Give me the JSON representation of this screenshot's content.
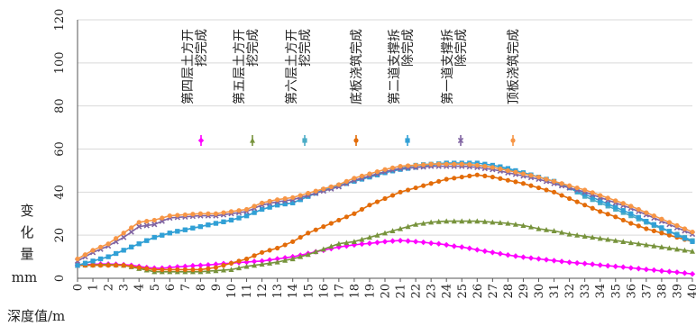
{
  "chart_data": {
    "type": "line",
    "x": [
      0,
      0.5,
      1,
      1.5,
      2,
      2.5,
      3,
      3.5,
      4,
      4.5,
      5,
      5.5,
      6,
      6.5,
      7,
      7.5,
      8,
      8.5,
      9,
      9.5,
      10,
      10.5,
      11,
      11.5,
      12,
      12.5,
      13,
      13.5,
      14,
      14.5,
      15,
      15.5,
      16,
      16.5,
      17,
      17.5,
      18,
      18.5,
      19,
      19.5,
      20,
      20.5,
      21,
      21.5,
      22,
      22.5,
      23,
      23.5,
      24,
      24.5,
      25,
      25.5,
      26,
      26.5,
      27,
      27.5,
      28,
      28.5,
      29,
      29.5,
      30,
      30.5,
      31,
      31.5,
      32,
      32.5,
      33,
      33.5,
      34,
      34.5,
      35,
      35.5,
      36,
      36.5,
      37,
      37.5,
      38,
      38.5,
      39,
      39.5,
      40
    ],
    "xticks": [
      0,
      1,
      2,
      3,
      4,
      5,
      6,
      7,
      8,
      9,
      10,
      11,
      12,
      13,
      14,
      15,
      16,
      17,
      18,
      19,
      20,
      21,
      22,
      23,
      24,
      25,
      26,
      27,
      28,
      29,
      30,
      31,
      32,
      33,
      34,
      35,
      36,
      37,
      38,
      39,
      40
    ],
    "xlim": [
      0,
      40
    ],
    "ylim": [
      0,
      120
    ],
    "yticks": [
      0,
      20,
      40,
      60,
      80,
      100,
      120
    ],
    "xlabel": "深度值/m",
    "ylabel_chars": [
      "变",
      "化",
      "量"
    ],
    "ylabel_unit": "mm",
    "legend_position": "top-center",
    "series": [
      {
        "name": "第四层土方开挖完成",
        "label_lines": [
          "第四层土方开",
          "挖完成"
        ],
        "color": "#ff00ff",
        "marker": "diamond",
        "values": [
          6,
          6.3,
          6.5,
          6.6,
          6.6,
          6.5,
          6.3,
          6,
          5.5,
          5,
          4.7,
          4.7,
          5,
          5.3,
          5.5,
          5.8,
          6,
          6.2,
          6.5,
          6.8,
          7,
          7.3,
          7.5,
          7.8,
          8,
          8.5,
          9,
          9.5,
          10,
          10.7,
          11.5,
          12.3,
          13,
          13.8,
          14.5,
          15,
          15.5,
          15.9,
          16.2,
          16.6,
          17,
          17.3,
          17.5,
          17.3,
          17,
          16.7,
          16.3,
          16,
          15.5,
          14.9,
          14.5,
          13.9,
          13.2,
          12.6,
          12,
          11.4,
          10.8,
          10.3,
          9.8,
          9.4,
          9,
          8.6,
          8.2,
          7.8,
          7.4,
          7.1,
          6.8,
          6.5,
          6.1,
          5.8,
          5.5,
          5.2,
          4.8,
          4.5,
          4.1,
          3.8,
          3.4,
          3.1,
          2.8,
          2.4,
          2
        ]
      },
      {
        "name": "第五层土方开挖完成",
        "label_lines": [
          "第五层土方开",
          "挖完成"
        ],
        "color": "#77933c",
        "marker": "triangle",
        "values": [
          6,
          6.1,
          6.2,
          6.3,
          6.4,
          6.2,
          6,
          5.3,
          4.5,
          3.8,
          3,
          3,
          3,
          3,
          3,
          3,
          3,
          3.3,
          3.5,
          3.8,
          4,
          4.8,
          5.5,
          6,
          6.5,
          7,
          7.5,
          8.3,
          9,
          10,
          11,
          12.3,
          13.5,
          14.8,
          16,
          16.5,
          17,
          18,
          19,
          20,
          21,
          22,
          23,
          24,
          25,
          25.5,
          26,
          26.3,
          26.5,
          26.5,
          26.5,
          26.5,
          26.5,
          26.3,
          26,
          25.8,
          25.5,
          25,
          24.5,
          23.8,
          23,
          22.5,
          22,
          21.3,
          20.5,
          20,
          19.5,
          19,
          18.5,
          18,
          17.5,
          17,
          16.5,
          16,
          15.5,
          15,
          14.5,
          14,
          13.5,
          13,
          12.5
        ]
      },
      {
        "name": "第六层土方开挖完成",
        "label_lines": [
          "第六层土方开",
          "挖完成"
        ],
        "color": "#4bacc6",
        "marker": "square",
        "values": [
          6,
          7,
          8,
          9,
          10,
          11.5,
          13,
          14.5,
          16,
          17.5,
          19,
          20,
          21,
          21.8,
          22.5,
          23.3,
          24,
          24.8,
          25.5,
          26.2,
          27,
          28,
          29,
          30.5,
          32,
          33,
          34,
          34.5,
          35,
          36.5,
          38,
          39.5,
          41,
          42,
          43,
          44,
          45,
          46,
          47,
          48,
          49,
          50,
          51,
          51.8,
          52.5,
          52.8,
          53,
          53.2,
          53.5,
          53.3,
          53,
          52.7,
          52.5,
          52,
          51.5,
          51,
          50.5,
          49.8,
          49,
          48,
          47,
          46,
          45,
          43.5,
          42,
          40,
          38,
          36.5,
          35,
          33.5,
          32,
          30.5,
          29,
          27.5,
          26,
          24.5,
          23,
          21.8,
          20.5,
          19,
          17.5
        ]
      },
      {
        "name": "底板浇筑完成",
        "label_lines": [
          "底板浇筑完成"
        ],
        "color": "#e36c09",
        "marker": "circle",
        "values": [
          6,
          6,
          6,
          6,
          6,
          6,
          6,
          5.5,
          5,
          4.5,
          4,
          4,
          4,
          4,
          4,
          4,
          4,
          4.5,
          5,
          6,
          7,
          8,
          9,
          10.5,
          12,
          13,
          14,
          15.5,
          17,
          19,
          21,
          22.5,
          24,
          25.5,
          27,
          28.5,
          30,
          32,
          34,
          35.5,
          37,
          38.5,
          40,
          41,
          42,
          43,
          44,
          45,
          46,
          46.5,
          47,
          47.5,
          48,
          47.5,
          47,
          46.3,
          45.5,
          44.8,
          44,
          43,
          42,
          41,
          40,
          38.5,
          37,
          35.5,
          34,
          32.5,
          31,
          29.8,
          28.5,
          27,
          25.5,
          24.3,
          23,
          22,
          21,
          20,
          19,
          18,
          17
        ]
      },
      {
        "name": "第二道支撑拆除完成",
        "label_lines": [
          "第二道支撑拆",
          "除完成"
        ],
        "color": "#31a0d6",
        "marker": "square",
        "values": [
          6,
          7,
          8,
          9,
          10,
          11.5,
          13,
          14.5,
          16,
          17.5,
          19,
          20,
          21,
          21.8,
          22.5,
          23.3,
          24,
          24.8,
          25.5,
          26.2,
          27,
          28,
          29,
          30.5,
          32,
          33,
          34,
          34.5,
          35,
          36.5,
          38,
          39.5,
          41,
          42,
          43,
          44,
          45,
          46,
          47,
          48,
          49,
          49.8,
          50.5,
          51,
          51.5,
          52,
          52.5,
          53,
          53.5,
          53.5,
          53.5,
          53.5,
          53.5,
          53,
          52.5,
          51.8,
          51,
          50,
          49,
          48,
          47,
          46,
          45,
          43.5,
          42,
          40.5,
          39,
          37.5,
          36,
          34.5,
          33,
          31.5,
          30,
          28.3,
          26.5,
          25,
          23.5,
          21.8,
          20,
          18.5,
          17
        ]
      },
      {
        "name": "第一道支撑拆除完成",
        "label_lines": [
          "第一道支撑拆",
          "除完成"
        ],
        "color": "#8064a2",
        "marker": "cross",
        "values": [
          8,
          10,
          12,
          13.5,
          15,
          17,
          19,
          21.5,
          24,
          24.5,
          25,
          26.5,
          28,
          28.3,
          28.5,
          28.8,
          29,
          29,
          29,
          29.5,
          30,
          30.5,
          31,
          32.5,
          34,
          34.8,
          35.5,
          36,
          36.5,
          37.5,
          38.5,
          39.5,
          40.5,
          41.5,
          42.5,
          44,
          45.5,
          46.5,
          47.5,
          48.5,
          49.5,
          50.3,
          51,
          51.3,
          51.5,
          51.7,
          52,
          52,
          52,
          52,
          52,
          51.8,
          51.5,
          51,
          50.5,
          49.8,
          49,
          48.3,
          47.5,
          46.8,
          46,
          45,
          44,
          43,
          42,
          41,
          40,
          38.8,
          37.5,
          36.3,
          35,
          33.8,
          32.5,
          31,
          29.5,
          28,
          26.5,
          25,
          23.5,
          22,
          20.5
        ]
      },
      {
        "name": "顶板浇筑完成",
        "label_lines": [
          "顶板浇筑完成"
        ],
        "color": "#f79646",
        "marker": "circle",
        "values": [
          9,
          11,
          13,
          14.5,
          16,
          18.5,
          21,
          23.5,
          26,
          26.5,
          27,
          28,
          29,
          29.3,
          29.5,
          29.8,
          30,
          30,
          30,
          30.5,
          31,
          31.5,
          32,
          33.5,
          35,
          35.8,
          36.5,
          37,
          37.5,
          38.5,
          39.5,
          40.5,
          41.5,
          42.5,
          43.5,
          45,
          46.5,
          47.5,
          48.5,
          49.5,
          50.5,
          51.3,
          52,
          52.3,
          52.5,
          52.7,
          53,
          53,
          53,
          53,
          53,
          52.8,
          52.5,
          52,
          51.5,
          50.8,
          50,
          49.3,
          48.5,
          47.8,
          47,
          46,
          45,
          44,
          43,
          42,
          41,
          39.8,
          38.5,
          37.3,
          36,
          34.8,
          33.5,
          32,
          30.5,
          29,
          27.5,
          26,
          24.5,
          23,
          21.5
        ]
      }
    ]
  }
}
